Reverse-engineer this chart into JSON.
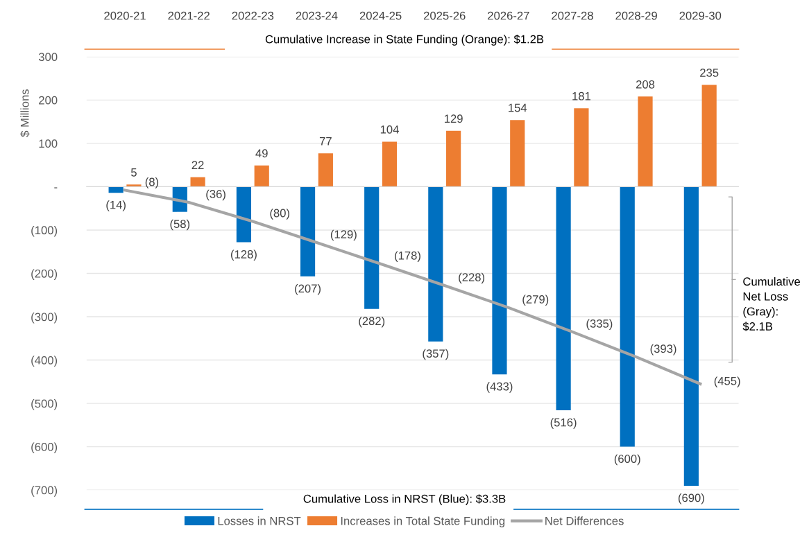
{
  "chart_data": {
    "type": "bar",
    "ylabel": "$ Millions",
    "categories": [
      "2020-21",
      "2021-22",
      "2022-23",
      "2023-24",
      "2024-25",
      "2025-26",
      "2026-27",
      "2027-28",
      "2028-29",
      "2029-30"
    ],
    "series": [
      {
        "name": "Losses in NRST",
        "color": "#0070c0",
        "values": [
          -14,
          -58,
          -128,
          -207,
          -282,
          -357,
          -433,
          -516,
          -600,
          -690
        ],
        "value_labels": [
          "(14)",
          "(58)",
          "(128)",
          "(207)",
          "(282)",
          "(357)",
          "(433)",
          "(516)",
          "(600)",
          "(690)"
        ]
      },
      {
        "name": "Increases in Total State Funding",
        "color": "#ed7d31",
        "values": [
          5,
          22,
          49,
          77,
          104,
          129,
          154,
          181,
          208,
          235
        ],
        "value_labels": [
          "5",
          "22",
          "49",
          "77",
          "104",
          "129",
          "154",
          "181",
          "208",
          "235"
        ]
      },
      {
        "name": "Net Differences",
        "type": "line",
        "color": "#a5a5a5",
        "values": [
          -8,
          -36,
          -80,
          -129,
          -178,
          -228,
          -279,
          -335,
          -393,
          -455
        ],
        "value_labels": [
          "(8)",
          "(36)",
          "(80)",
          "(129)",
          "(178)",
          "(228)",
          "(279)",
          "(335)",
          "(393)",
          "(455)"
        ]
      }
    ],
    "ylim": [
      -700,
      300
    ],
    "yticks": [
      {
        "value": -700,
        "label": "(700)"
      },
      {
        "value": -600,
        "label": "(600)"
      },
      {
        "value": -500,
        "label": "(500)"
      },
      {
        "value": -400,
        "label": "(400)"
      },
      {
        "value": -300,
        "label": "(300)"
      },
      {
        "value": -200,
        "label": "(200)"
      },
      {
        "value": -100,
        "label": "(100)"
      },
      {
        "value": 0,
        "label": "-"
      },
      100,
      200,
      300
    ],
    "grid": "y",
    "legend": "bottom",
    "marker": "none",
    "line_style": "solid",
    "annotations": [
      "Cumulative Increase in State Funding (Orange): $1.2B",
      "Cumulative Loss in NRST (Blue): $3.3B",
      "Cumulative\nNet Loss\n(Gray):\n$2.1B"
    ]
  }
}
